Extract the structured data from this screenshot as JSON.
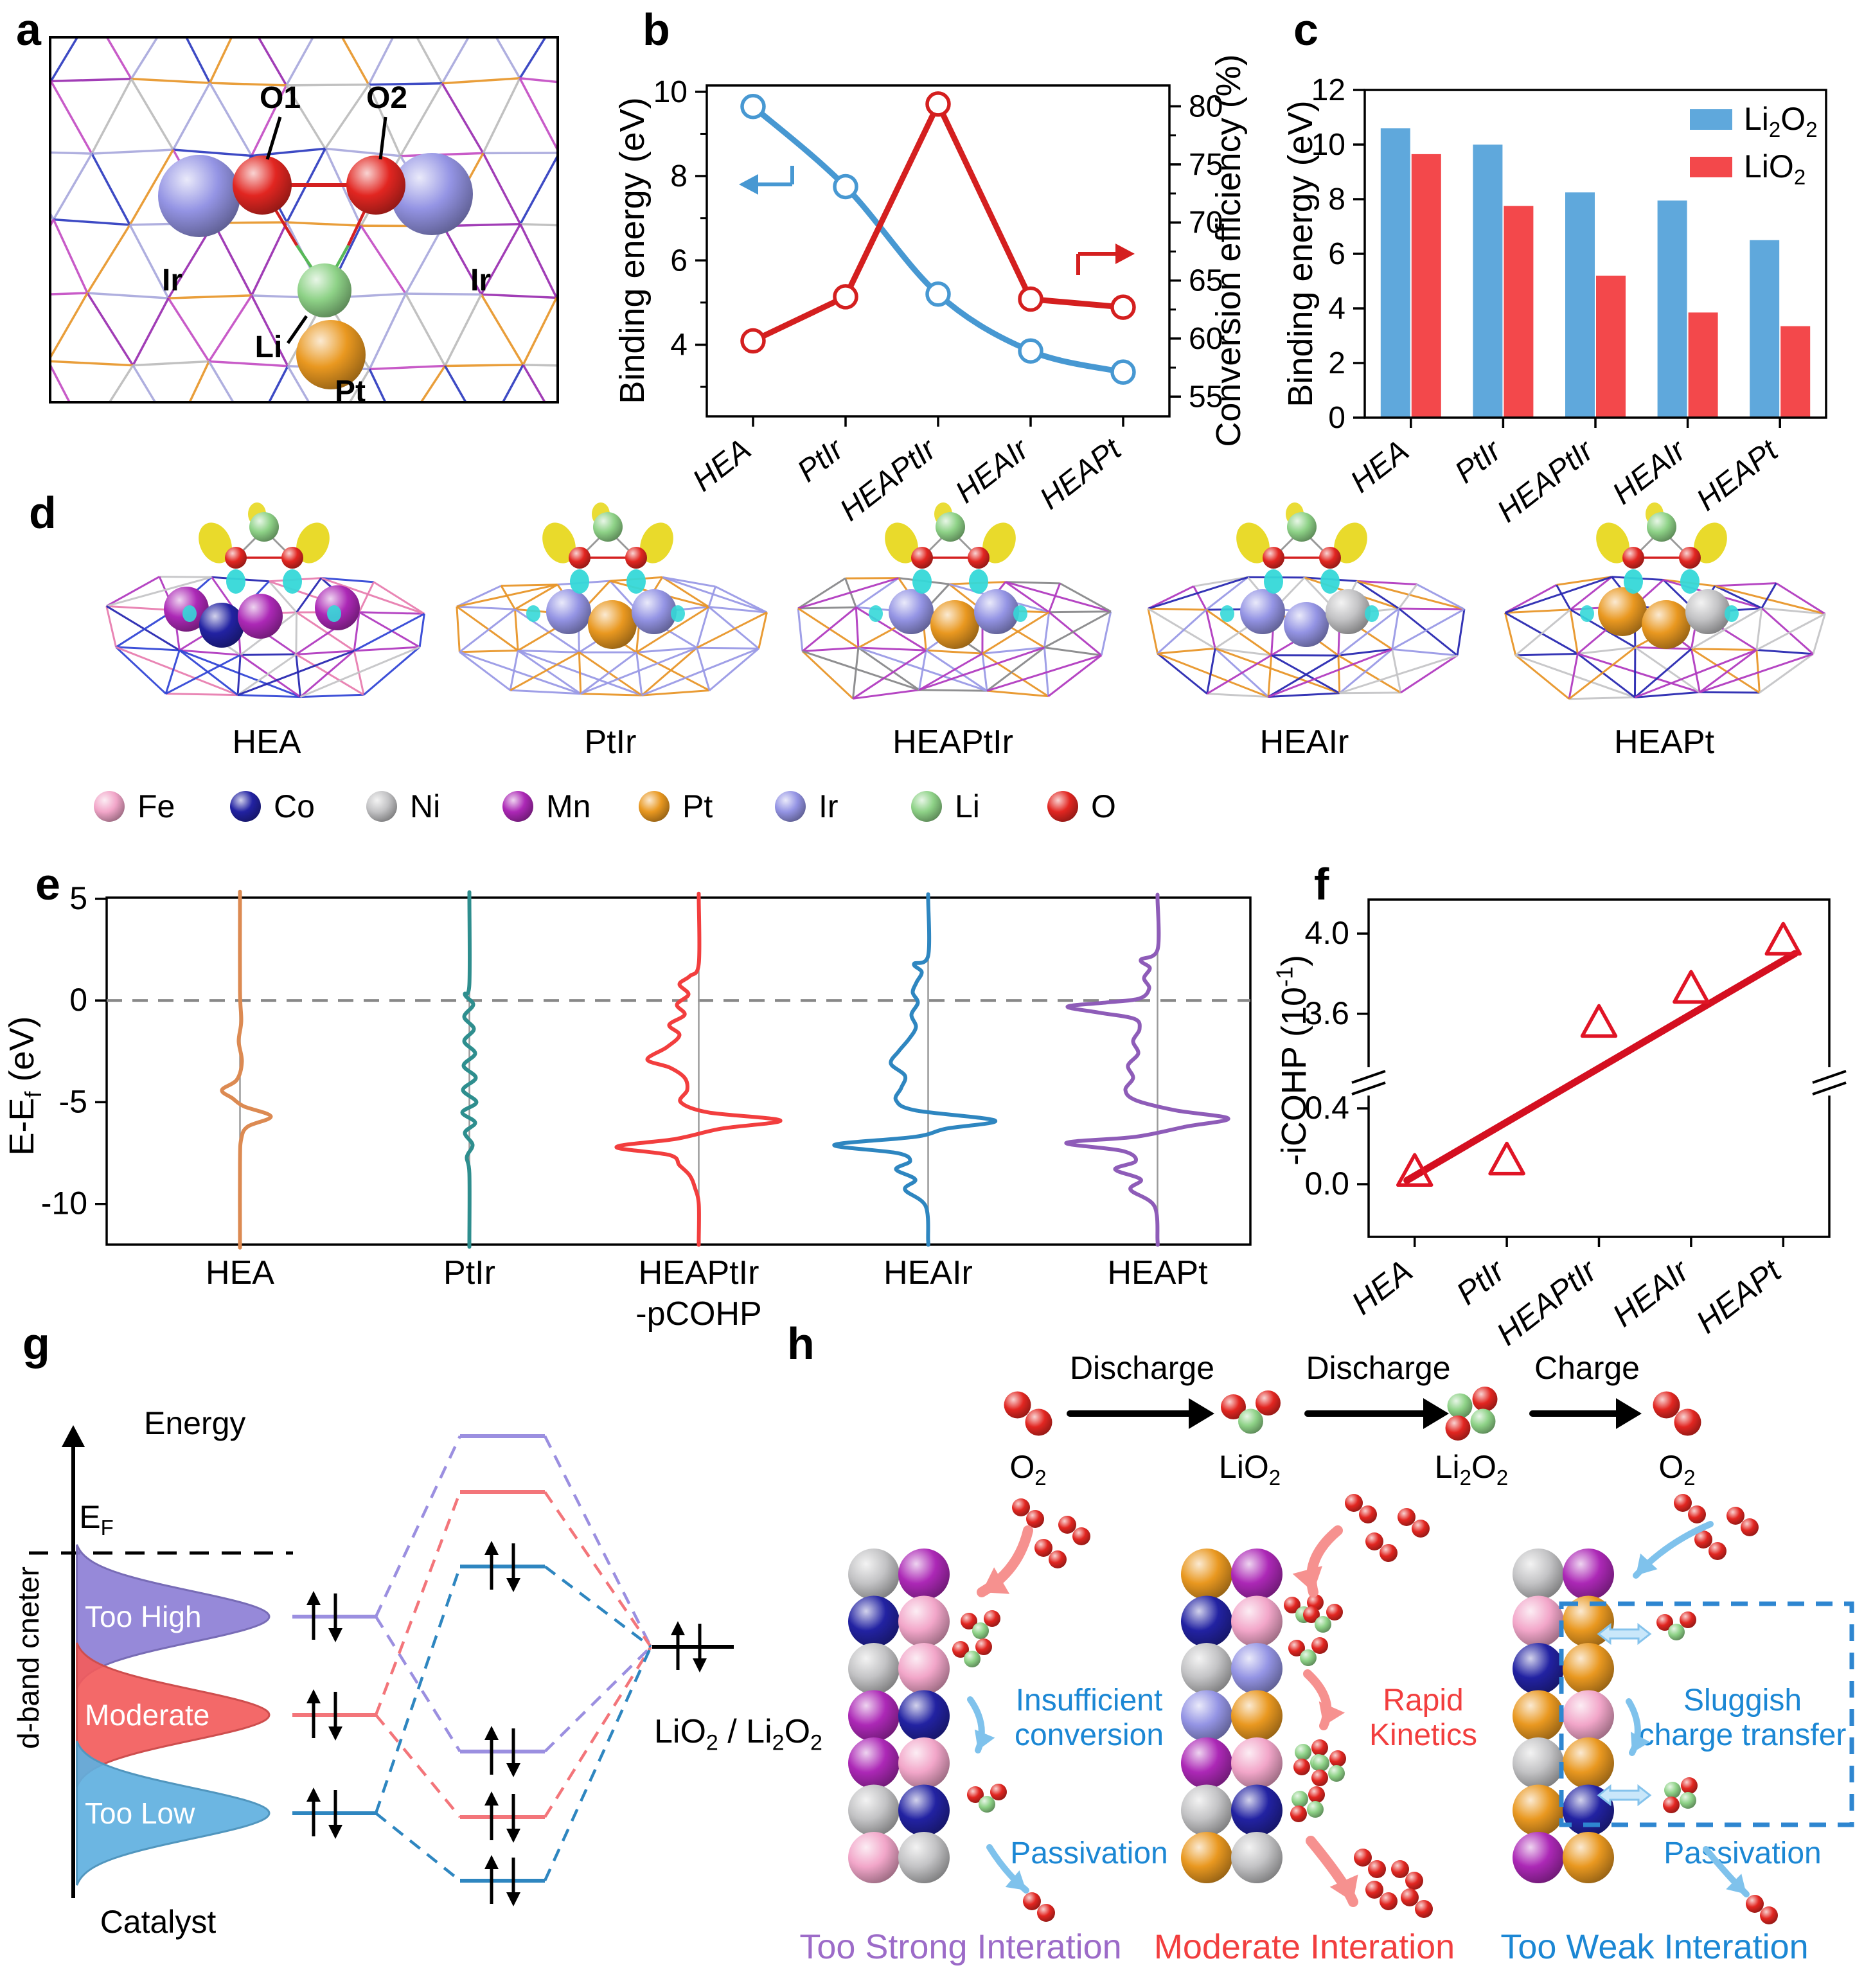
{
  "panel_letters": {
    "a": "a",
    "b": "b",
    "c": "c",
    "d": "d",
    "e": "e",
    "f": "f",
    "g": "g",
    "h": "h"
  },
  "palette": {
    "Fe": "#f2a6c9",
    "Co": "#2222a2",
    "Ni": "#c3c3c5",
    "Mn": "#ac28b6",
    "Pt": "#e99820",
    "Ir": "#9494e4",
    "Li": "#8ed287",
    "O": "#e22621"
  },
  "panel_a": {
    "labels": {
      "o1": "O1",
      "o2": "O2",
      "ir_left": "Ir",
      "ir_right": "Ir",
      "li": "Li",
      "pt": "Pt"
    }
  },
  "chart_data": [
    {
      "id": "b",
      "type": "line",
      "categories": [
        "HEA",
        "PtIr",
        "HEAPtIr",
        "HEAIr",
        "HEAPt"
      ],
      "left_axis": {
        "label": "Binding energy (eV)",
        "ticks": [
          4,
          6,
          8,
          10
        ],
        "minor": [
          3,
          5,
          7,
          9
        ],
        "range": [
          2.3,
          10.15
        ],
        "color": "#4798d2"
      },
      "right_axis": {
        "label": "Conversion efficiency (%)",
        "ticks": [
          55,
          60,
          65,
          70,
          75,
          80
        ],
        "minor": [
          57.5,
          62.5,
          67.5,
          72.5,
          77.5
        ],
        "range": [
          53.3,
          81.8
        ],
        "color": "#d41f1f"
      },
      "series": [
        {
          "name": "Binding energy",
          "axis": "left",
          "color": "#4798d2",
          "values": [
            9.65,
            7.75,
            5.2,
            3.85,
            3.35
          ]
        },
        {
          "name": "Conversion efficiency",
          "axis": "right",
          "color": "#d41f1f",
          "values": [
            59.8,
            63.6,
            80.2,
            63.4,
            62.7
          ]
        }
      ]
    },
    {
      "id": "c",
      "type": "bar",
      "categories": [
        "HEA",
        "PtIr",
        "HEAPtIr",
        "HEAIr",
        "HEAPt"
      ],
      "ylabel": "Binding energy (eV)",
      "yticks": [
        0,
        2,
        4,
        6,
        8,
        10,
        12
      ],
      "ylim": [
        0,
        12
      ],
      "series": [
        {
          "name": "Li2O2",
          "color": "#5fa8dc",
          "values": [
            10.6,
            10.0,
            8.25,
            7.95,
            6.5
          ]
        },
        {
          "name": "LiO2",
          "color": "#f3484b",
          "values": [
            9.65,
            7.75,
            5.2,
            3.85,
            3.35
          ]
        }
      ]
    },
    {
      "id": "e",
      "type": "pcohp",
      "ylabel": "E-E_f (eV)",
      "yticks": [
        5,
        0,
        -5,
        -10
      ],
      "ylim": [
        5.06,
        -12.0
      ],
      "note": "-pCOHP",
      "curves": [
        {
          "label": "HEA",
          "color": "#dc8a52",
          "points": [
            [
              5,
              0
            ],
            [
              0.5,
              0
            ],
            [
              -1,
              2
            ],
            [
              -2,
              -2
            ],
            [
              -3,
              3
            ],
            [
              -3.9,
              -5
            ],
            [
              -4.4,
              -28
            ],
            [
              -4.8,
              -12
            ],
            [
              -5.2,
              6
            ],
            [
              -5.7,
              48
            ],
            [
              -6.2,
              12
            ],
            [
              -6.8,
              2
            ],
            [
              -8,
              0
            ],
            [
              -11.8,
              0
            ]
          ]
        },
        {
          "label": "PtIr",
          "color": "#2e8e8e",
          "points": [
            [
              5,
              0
            ],
            [
              0.8,
              0
            ],
            [
              0.3,
              -7
            ],
            [
              -0.2,
              6
            ],
            [
              -0.8,
              -8
            ],
            [
              -1.4,
              7
            ],
            [
              -2.0,
              -8
            ],
            [
              -2.6,
              9
            ],
            [
              -3.2,
              -9
            ],
            [
              -3.8,
              10
            ],
            [
              -4.4,
              -10
            ],
            [
              -5.0,
              11
            ],
            [
              -5.5,
              -11
            ],
            [
              -6.0,
              9
            ],
            [
              -6.5,
              -7
            ],
            [
              -7.1,
              5
            ],
            [
              -7.7,
              -4
            ],
            [
              -8.5,
              0
            ],
            [
              -11.8,
              0
            ]
          ]
        },
        {
          "label": "HEAPtIr",
          "color": "#f23e3e",
          "points": [
            [
              5,
              0
            ],
            [
              1.8,
              0
            ],
            [
              1.2,
              -14
            ],
            [
              0.8,
              -30
            ],
            [
              0.3,
              -16
            ],
            [
              -0.2,
              -34
            ],
            [
              -0.7,
              -22
            ],
            [
              -1.2,
              -46
            ],
            [
              -1.7,
              -30
            ],
            [
              -2.3,
              -50
            ],
            [
              -2.9,
              -80
            ],
            [
              -3.3,
              -45
            ],
            [
              -3.8,
              -22
            ],
            [
              -4.4,
              -18
            ],
            [
              -5.0,
              -28
            ],
            [
              -5.5,
              15
            ],
            [
              -5.9,
              127
            ],
            [
              -6.3,
              35
            ],
            [
              -6.8,
              -35
            ],
            [
              -7.2,
              -128
            ],
            [
              -7.6,
              -45
            ],
            [
              -8.1,
              -30
            ],
            [
              -8.6,
              -14
            ],
            [
              -9.2,
              -6
            ],
            [
              -10,
              0
            ],
            [
              -11.8,
              0
            ]
          ]
        },
        {
          "label": "HEAIr",
          "color": "#2e86c0",
          "points": [
            [
              5,
              0
            ],
            [
              2.2,
              0
            ],
            [
              1.8,
              -22
            ],
            [
              1.4,
              -10
            ],
            [
              0.9,
              -18
            ],
            [
              0.4,
              -24
            ],
            [
              -0.1,
              -16
            ],
            [
              -0.7,
              -26
            ],
            [
              -1.3,
              -19
            ],
            [
              -1.9,
              -30
            ],
            [
              -2.5,
              -46
            ],
            [
              -3.1,
              -58
            ],
            [
              -3.7,
              -36
            ],
            [
              -4.3,
              -42
            ],
            [
              -4.9,
              -50
            ],
            [
              -5.4,
              -20
            ],
            [
              -5.9,
              104
            ],
            [
              -6.3,
              28
            ],
            [
              -6.7,
              -20
            ],
            [
              -7.1,
              -146
            ],
            [
              -7.5,
              -48
            ],
            [
              -7.9,
              -28
            ],
            [
              -8.3,
              -50
            ],
            [
              -8.8,
              -20
            ],
            [
              -9.3,
              -36
            ],
            [
              -10.1,
              -4
            ],
            [
              -11.8,
              0
            ]
          ]
        },
        {
          "label": "HEAPt",
          "color": "#8e5cb8",
          "points": [
            [
              5,
              0
            ],
            [
              2.5,
              0
            ],
            [
              2.0,
              -26
            ],
            [
              1.6,
              -12
            ],
            [
              1.1,
              -21
            ],
            [
              0.6,
              -13
            ],
            [
              0.1,
              -28
            ],
            [
              -0.1,
              -80
            ],
            [
              -0.3,
              -140
            ],
            [
              -0.6,
              -90
            ],
            [
              -0.9,
              -36
            ],
            [
              -1.4,
              -28
            ],
            [
              -2.0,
              -38
            ],
            [
              -2.6,
              -30
            ],
            [
              -3.2,
              -46
            ],
            [
              -3.8,
              -38
            ],
            [
              -4.4,
              -50
            ],
            [
              -4.9,
              -34
            ],
            [
              -5.4,
              28
            ],
            [
              -5.8,
              110
            ],
            [
              -6.2,
              44
            ],
            [
              -6.7,
              -34
            ],
            [
              -7.0,
              -142
            ],
            [
              -7.4,
              -54
            ],
            [
              -7.9,
              -34
            ],
            [
              -8.3,
              -66
            ],
            [
              -8.8,
              -26
            ],
            [
              -9.3,
              -42
            ],
            [
              -10.1,
              -5
            ],
            [
              -11.8,
              0
            ]
          ]
        }
      ]
    },
    {
      "id": "f",
      "type": "scatter-broken-axis",
      "ylabel": "-iCOHP (10^-1)",
      "categories": [
        "HEA",
        "PtIr",
        "HEAPtIr",
        "HEAIr",
        "HEAPt"
      ],
      "values": [
        0.06,
        0.12,
        3.55,
        3.72,
        3.96
      ],
      "yticks_low": [
        "0.0",
        "0.4"
      ],
      "yticks_high": [
        "3.6",
        "4.0"
      ],
      "color": "#e01425",
      "trend": [
        0.02,
        3.9
      ]
    }
  ],
  "panel_d": {
    "structures": [
      {
        "label": "HEA",
        "mesh": [
          "#c6c6c8",
          "#2a2ab2",
          "#e87fb0",
          "#b23cc0",
          "#3347d6"
        ],
        "surface": [
          "Mn",
          "Co",
          "Mn",
          "Mn"
        ]
      },
      {
        "label": "PtIr",
        "mesh": [
          "#e8962a",
          "#9a9ae6"
        ],
        "surface": [
          "Ir",
          "Pt",
          "Ir"
        ]
      },
      {
        "label": "HEAPtIr",
        "mesh": [
          "#e8962a",
          "#9a9ae6",
          "#b23cc0",
          "#8a8a8c"
        ],
        "surface": [
          "Ir",
          "Pt",
          "Ir"
        ]
      },
      {
        "label": "HEAIr",
        "mesh": [
          "#9a9ae6",
          "#e8962a",
          "#b23cc0",
          "#2a2ab2",
          "#c6c6c8"
        ],
        "surface": [
          "Ir",
          "Ir",
          "Ni"
        ]
      },
      {
        "label": "HEAPt",
        "mesh": [
          "#e8962a",
          "#b23cc0",
          "#c6c6c8",
          "#2a2ab2"
        ],
        "surface": [
          "Pt",
          "Pt",
          "Ni"
        ]
      }
    ],
    "legend": [
      {
        "label": "Fe"
      },
      {
        "label": "Co"
      },
      {
        "label": "Ni"
      },
      {
        "label": "Mn"
      },
      {
        "label": "Pt"
      },
      {
        "label": "Ir"
      },
      {
        "label": "Li"
      },
      {
        "label": "O"
      }
    ]
  },
  "panel_g": {
    "energy": "Energy",
    "ef": "E_F",
    "dband": "d-band cneter",
    "catalyst": "Catalyst",
    "product": "LiO2 / Li2O2",
    "peaks": [
      {
        "label": "Too High",
        "color": "#8d7fd6",
        "line": "#9b8fe0"
      },
      {
        "label": "Moderate",
        "color": "#f25c5c",
        "line": "#f3757a"
      },
      {
        "label": "Too Low",
        "color": "#5fb0e0",
        "line": "#2e86c0"
      }
    ]
  },
  "panel_h": {
    "steps": [
      "Discharge",
      "Discharge",
      "Charge"
    ],
    "species": [
      "O2",
      "LiO2",
      "Li2O2",
      "O2"
    ],
    "columns": [
      {
        "left": [
          "Ni",
          "Co",
          "Ni",
          "Mn",
          "Mn",
          "Ni",
          "Fe"
        ],
        "right": [
          "Mn",
          "Fe",
          "Fe",
          "Co",
          "Fe",
          "Co",
          "Ni"
        ],
        "notes": [
          {
            "text": "Insufficient conversion",
            "color": "#1b87d4"
          },
          {
            "text": "Passivation",
            "color": "#1b87d4"
          }
        ],
        "title": {
          "text": "Too Strong Interation",
          "color": "#9c6bc8"
        }
      },
      {
        "left": [
          "Pt",
          "Co",
          "Ni",
          "Ir",
          "Mn",
          "Ni",
          "Pt"
        ],
        "right": [
          "Mn",
          "Fe",
          "Ir",
          "Pt",
          "Fe",
          "Co",
          "Ni"
        ],
        "notes": [
          {
            "text": "Rapid Kinetics",
            "color": "#f23e3e"
          }
        ],
        "title": {
          "text": "Moderate Interation",
          "color": "#f23e3e"
        }
      },
      {
        "left": [
          "Ni",
          "Fe",
          "Co",
          "Pt",
          "Ni",
          "Pt",
          "Mn"
        ],
        "right": [
          "Mn",
          "Pt",
          "Pt",
          "Fe",
          "Pt",
          "Co",
          "Pt"
        ],
        "notes": [
          {
            "text": "Sluggish charge transfer",
            "color": "#1b87d4"
          },
          {
            "text": "Passivation",
            "color": "#1b87d4"
          }
        ],
        "title": {
          "text": "Too Weak Interation",
          "color": "#1b87d4"
        }
      }
    ]
  }
}
